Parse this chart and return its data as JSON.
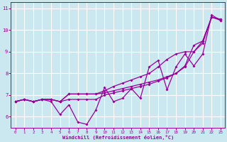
{
  "xlabel": "Windchill (Refroidissement éolien,°C)",
  "background_color": "#cbe8f0",
  "grid_color": "#ffffff",
  "line_color": "#990099",
  "xlim": [
    -0.5,
    23.5
  ],
  "ylim": [
    5.5,
    11.3
  ],
  "xticks": [
    0,
    1,
    2,
    3,
    4,
    5,
    6,
    7,
    8,
    9,
    10,
    11,
    12,
    13,
    14,
    15,
    16,
    17,
    18,
    19,
    20,
    21,
    22,
    23
  ],
  "yticks": [
    6,
    7,
    8,
    9,
    10,
    11
  ],
  "series": {
    "line1": [
      6.7,
      6.8,
      6.7,
      6.8,
      6.8,
      6.7,
      7.05,
      7.05,
      7.05,
      7.05,
      7.1,
      7.2,
      7.3,
      7.4,
      7.5,
      7.6,
      7.7,
      7.85,
      8.0,
      8.3,
      9.0,
      9.5,
      10.6,
      10.5
    ],
    "line2": [
      6.7,
      6.8,
      6.7,
      6.8,
      6.8,
      6.7,
      7.05,
      7.05,
      7.05,
      7.05,
      7.2,
      7.4,
      7.55,
      7.7,
      7.85,
      8.0,
      8.3,
      8.65,
      8.9,
      9.0,
      9.0,
      9.4,
      10.6,
      10.5
    ],
    "line3": [
      6.7,
      6.8,
      6.7,
      6.8,
      6.8,
      6.7,
      6.8,
      6.8,
      6.8,
      6.8,
      7.0,
      7.1,
      7.2,
      7.3,
      7.4,
      7.5,
      7.65,
      7.8,
      8.0,
      8.35,
      9.3,
      9.5,
      10.6,
      10.45
    ],
    "line_jagged": [
      6.7,
      6.8,
      6.7,
      6.8,
      6.7,
      6.1,
      6.55,
      5.75,
      5.65,
      6.3,
      7.35,
      6.7,
      6.85,
      7.3,
      6.85,
      8.3,
      8.6,
      7.25,
      8.3,
      8.9,
      8.35,
      8.9,
      10.7,
      10.45
    ]
  }
}
